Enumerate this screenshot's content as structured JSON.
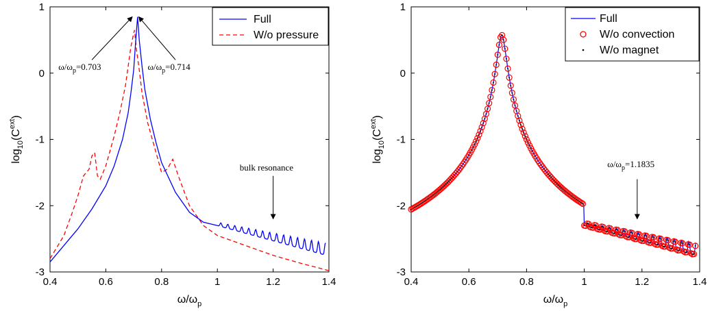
{
  "chart_data": [
    {
      "type": "line",
      "xlabel": "ω/ω",
      "xlabel_sub": "p",
      "ylabel": "log",
      "ylabel_sub": "10",
      "ylabel_mid": "(C",
      "ylabel_sup": "ext",
      "ylabel_end": ")",
      "xlim": [
        0.4,
        1.4
      ],
      "ylim": [
        -3,
        1
      ],
      "xticks": [
        "0.4",
        "0.6",
        "0.8",
        "1",
        "1.2",
        "1.4"
      ],
      "yticks": [
        "-3",
        "-2",
        "-1",
        "0",
        "1"
      ],
      "legend_position": "top-right",
      "series": [
        {
          "name": "Full",
          "color": "#0000ff",
          "style": "solid",
          "x": [
            0.4,
            0.45,
            0.5,
            0.55,
            0.6,
            0.63,
            0.66,
            0.68,
            0.69,
            0.7,
            0.705,
            0.71,
            0.714,
            0.72,
            0.73,
            0.74,
            0.76,
            0.78,
            0.8,
            0.85,
            0.9,
            0.95,
            1.0,
            1.03,
            1.06,
            1.1,
            1.15,
            1.2,
            1.25,
            1.3,
            1.35,
            1.39
          ],
          "y": [
            -2.85,
            -2.6,
            -2.35,
            -2.05,
            -1.7,
            -1.4,
            -1.0,
            -0.6,
            -0.3,
            0.05,
            0.35,
            0.65,
            0.85,
            0.5,
            0.1,
            -0.25,
            -0.7,
            -1.05,
            -1.35,
            -1.8,
            -2.1,
            -2.25,
            -2.3,
            -2.27,
            -2.3,
            -2.32,
            -2.38,
            -2.45,
            -2.5,
            -2.55,
            -2.6,
            -2.72
          ]
        },
        {
          "name": "W/o pressure",
          "color": "#ff0000",
          "style": "dashed",
          "x": [
            0.4,
            0.45,
            0.48,
            0.5,
            0.52,
            0.54,
            0.55,
            0.56,
            0.57,
            0.58,
            0.6,
            0.63,
            0.65,
            0.67,
            0.68,
            0.69,
            0.7,
            0.703,
            0.71,
            0.72,
            0.73,
            0.75,
            0.78,
            0.8,
            0.82,
            0.84,
            0.86,
            0.9,
            0.95,
            1.0,
            1.1,
            1.2,
            1.3,
            1.4
          ],
          "y": [
            -2.8,
            -2.45,
            -2.1,
            -1.85,
            -1.55,
            -1.45,
            -1.25,
            -1.2,
            -1.55,
            -1.6,
            -1.4,
            -0.95,
            -0.6,
            -0.2,
            0.1,
            0.4,
            0.6,
            0.65,
            0.35,
            0.05,
            -0.3,
            -0.75,
            -1.2,
            -1.5,
            -1.45,
            -1.3,
            -1.55,
            -2.0,
            -2.3,
            -2.45,
            -2.6,
            -2.75,
            -2.87,
            -2.98
          ]
        }
      ],
      "annotations": [
        {
          "text": "ω/ω",
          "sub": "p",
          "rest": "=0.703"
        },
        {
          "text": "ω/ω",
          "sub": "p",
          "rest": "=0.714"
        },
        {
          "text": "bulk resonance",
          "sub": "",
          "rest": ""
        }
      ]
    },
    {
      "type": "line",
      "xlabel": "ω/ω",
      "xlabel_sub": "p",
      "ylabel": "log",
      "ylabel_sub": "10",
      "ylabel_mid": "(C",
      "ylabel_sup": "ext",
      "ylabel_end": ")",
      "xlim": [
        0.4,
        1.4
      ],
      "ylim": [
        -3,
        1
      ],
      "xticks": [
        "0.4",
        "0.6",
        "0.8",
        "1",
        "1.2",
        "1.4"
      ],
      "yticks": [
        "-3",
        "-2",
        "-1",
        "0",
        "1"
      ],
      "legend_position": "top-right",
      "series": [
        {
          "name": "Full",
          "color": "#0000ff",
          "style": "solid"
        },
        {
          "name": "W/o convection",
          "color": "#ff0000",
          "style": "circle-markers"
        },
        {
          "name": "W/o magnet",
          "color": "#000000",
          "style": "dot-markers"
        }
      ],
      "annotations": [
        {
          "text": "ω/ω",
          "sub": "p",
          "rest": "=1.1835"
        }
      ]
    }
  ]
}
